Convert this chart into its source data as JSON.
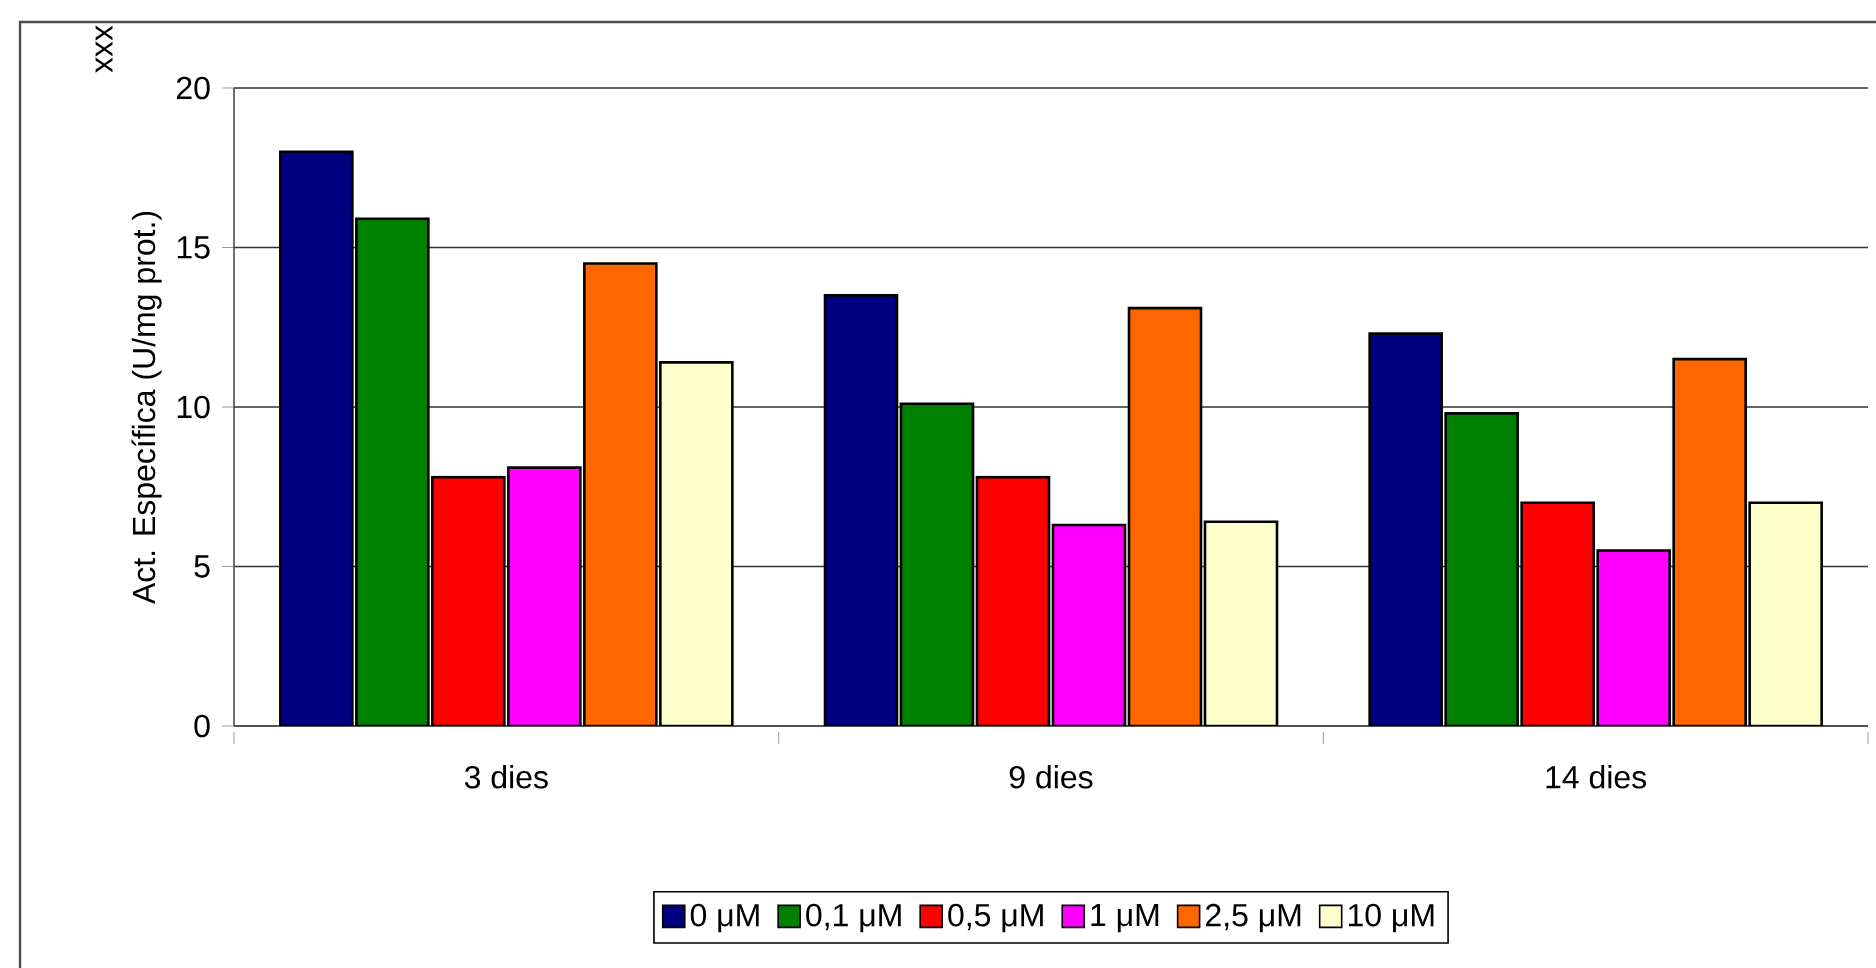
{
  "chart_data": {
    "type": "bar",
    "ylabel": "Act. Específica (U/mg prot.)",
    "annotations": [
      "xxx"
    ],
    "categories": [
      "3 dies",
      "9 dies",
      "14 dies"
    ],
    "series": [
      {
        "name": "0 μM",
        "color": "#000080",
        "values": [
          18.0,
          13.5,
          12.3
        ]
      },
      {
        "name": "0,1 μM",
        "color": "#008000",
        "values": [
          15.9,
          10.1,
          9.8
        ]
      },
      {
        "name": "0,5 μM",
        "color": "#ff0000",
        "values": [
          7.8,
          7.8,
          7.0
        ]
      },
      {
        "name": "1 μM",
        "color": "#ff00ff",
        "values": [
          8.1,
          6.3,
          5.5
        ]
      },
      {
        "name": "2,5 μM",
        "color": "#ff6600",
        "values": [
          14.5,
          13.1,
          11.5
        ]
      },
      {
        "name": "10 μM",
        "color": "#ffffcc",
        "values": [
          11.4,
          6.4,
          7.0
        ]
      }
    ],
    "ylim": [
      0,
      20
    ],
    "yticks": [
      0,
      5,
      10,
      15,
      20
    ],
    "grid": "y",
    "legend": "bottom"
  }
}
